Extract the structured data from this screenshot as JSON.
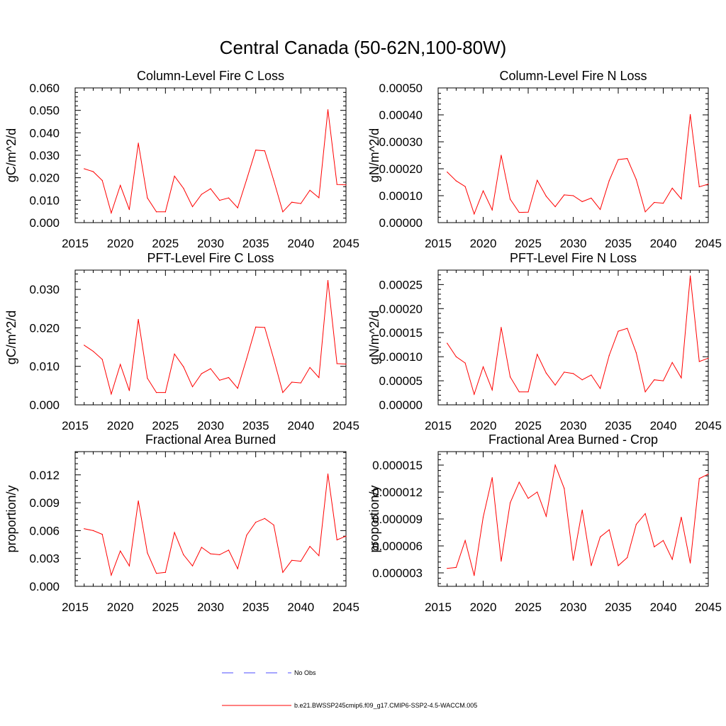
{
  "title": "Central Canada (50-62N,100-80W)",
  "colors": {
    "series": "#ff0000",
    "obs": "#4d4dff",
    "axis": "#000000"
  },
  "legend": [
    {
      "label": "No Obs",
      "style": "dashed",
      "color": "#4d4dff"
    },
    {
      "label": "b.e21.BWSSP245cmip6.f09_g17.CMIP6-SSP2-4.5-WACCM.005",
      "style": "solid",
      "color": "#ff0000"
    }
  ],
  "chart_data": [
    {
      "type": "line",
      "title": "Column-Level Fire C Loss",
      "xlabel": "",
      "ylabel": "gC/m^2/d",
      "xlim": [
        2015,
        2045
      ],
      "ylim": [
        0,
        0.06
      ],
      "xticks": [
        2015,
        2020,
        2025,
        2030,
        2035,
        2040,
        2045
      ],
      "xtick_labels": [
        "2015",
        "2020",
        "2025",
        "2030",
        "2035",
        "2040",
        "2045"
      ],
      "yticks": [
        0,
        0.01,
        0.02,
        0.03,
        0.04,
        0.05,
        0.06
      ],
      "ytick_labels": [
        "0.000",
        "0.010",
        "0.020",
        "0.030",
        "0.040",
        "0.050",
        "0.060"
      ],
      "x": [
        2016,
        2017,
        2018,
        2019,
        2020,
        2021,
        2022,
        2023,
        2024,
        2025,
        2026,
        2027,
        2028,
        2029,
        2030,
        2031,
        2032,
        2033,
        2034,
        2035,
        2036,
        2037,
        2038,
        2039,
        2040,
        2041,
        2042,
        2043,
        2044,
        2045
      ],
      "series": [
        {
          "name": "b.e21.BWSSP245cmip6.f09_g17.CMIP6-SSP2-4.5-WACCM.005",
          "values": [
            0.024,
            0.0227,
            0.0188,
            0.0043,
            0.0166,
            0.0058,
            0.0354,
            0.011,
            0.0048,
            0.0048,
            0.0207,
            0.0153,
            0.0071,
            0.0126,
            0.0151,
            0.0099,
            0.011,
            0.0066,
            0.0192,
            0.0323,
            0.032,
            0.0188,
            0.0048,
            0.0091,
            0.0085,
            0.0144,
            0.0111,
            0.0503,
            0.017,
            0.0168
          ]
        }
      ]
    },
    {
      "type": "line",
      "title": "Column-Level Fire N Loss",
      "xlabel": "",
      "ylabel": "gN/m^2/d",
      "xlim": [
        2015,
        2045
      ],
      "ylim": [
        0,
        0.0005
      ],
      "xticks": [
        2015,
        2020,
        2025,
        2030,
        2035,
        2040,
        2045
      ],
      "xtick_labels": [
        "2015",
        "2020",
        "2025",
        "2030",
        "2035",
        "2040",
        "2045"
      ],
      "yticks": [
        0,
        0.0001,
        0.0002,
        0.0003,
        0.0004,
        0.0005
      ],
      "ytick_labels": [
        "0.00000",
        "0.00010",
        "0.00020",
        "0.00030",
        "0.00040",
        "0.00050"
      ],
      "x": [
        2016,
        2017,
        2018,
        2019,
        2020,
        2021,
        2022,
        2023,
        2024,
        2025,
        2026,
        2027,
        2028,
        2029,
        2030,
        2031,
        2032,
        2033,
        2034,
        2035,
        2036,
        2037,
        2038,
        2039,
        2040,
        2041,
        2042,
        2043,
        2044,
        2045
      ],
      "series": [
        {
          "name": "b.e21.BWSSP245cmip6.f09_g17.CMIP6-SSP2-4.5-WACCM.005",
          "values": [
            0.000188,
            0.000155,
            0.000134,
            3.2e-05,
            0.000118,
            4.7e-05,
            0.00025,
            8.7e-05,
            3.8e-05,
            3.9e-05,
            0.000157,
            9.8e-05,
            5.9e-05,
            0.000103,
            0.0001,
            7.8e-05,
            9.1e-05,
            4.9e-05,
            0.000156,
            0.000234,
            0.000238,
            0.00016,
            4e-05,
            7.5e-05,
            7.2e-05,
            0.000128,
            8.8e-05,
            0.000401,
            0.000133,
            0.000143
          ]
        }
      ]
    },
    {
      "type": "line",
      "title": "PFT-Level Fire C Loss",
      "xlabel": "",
      "ylabel": "gC/m^2/d",
      "xlim": [
        2015,
        2045
      ],
      "ylim": [
        0,
        0.035
      ],
      "xticks": [
        2015,
        2020,
        2025,
        2030,
        2035,
        2040,
        2045
      ],
      "xtick_labels": [
        "2015",
        "2020",
        "2025",
        "2030",
        "2035",
        "2040",
        "2045"
      ],
      "yticks": [
        0,
        0.01,
        0.02,
        0.03
      ],
      "ytick_labels": [
        "0.000",
        "0.010",
        "0.020",
        "0.030"
      ],
      "x": [
        2016,
        2017,
        2018,
        2019,
        2020,
        2021,
        2022,
        2023,
        2024,
        2025,
        2026,
        2027,
        2028,
        2029,
        2030,
        2031,
        2032,
        2033,
        2034,
        2035,
        2036,
        2037,
        2038,
        2039,
        2040,
        2041,
        2042,
        2043,
        2044,
        2045
      ],
      "series": [
        {
          "name": "b.e21.BWSSP245cmip6.f09_g17.CMIP6-SSP2-4.5-WACCM.005",
          "values": [
            0.0155,
            0.0139,
            0.0118,
            0.0028,
            0.0105,
            0.0037,
            0.0222,
            0.0069,
            0.0032,
            0.0032,
            0.0132,
            0.0099,
            0.0047,
            0.0081,
            0.0094,
            0.0064,
            0.0071,
            0.0043,
            0.012,
            0.0202,
            0.0201,
            0.0119,
            0.0032,
            0.0059,
            0.0057,
            0.0097,
            0.0071,
            0.0323,
            0.0107,
            0.0106
          ]
        }
      ]
    },
    {
      "type": "line",
      "title": "PFT-Level Fire N Loss",
      "xlabel": "",
      "ylabel": "gN/m^2/d",
      "xlim": [
        2015,
        2045
      ],
      "ylim": [
        0,
        0.00028
      ],
      "xticks": [
        2015,
        2020,
        2025,
        2030,
        2035,
        2040,
        2045
      ],
      "xtick_labels": [
        "2015",
        "2020",
        "2025",
        "2030",
        "2035",
        "2040",
        "2045"
      ],
      "yticks": [
        0,
        5e-05,
        0.0001,
        0.00015,
        0.0002,
        0.00025
      ],
      "ytick_labels": [
        "0.00000",
        "0.00005",
        "0.00010",
        "0.00015",
        "0.00020",
        "0.00025"
      ],
      "x": [
        2016,
        2017,
        2018,
        2019,
        2020,
        2021,
        2022,
        2023,
        2024,
        2025,
        2026,
        2027,
        2028,
        2029,
        2030,
        2031,
        2032,
        2033,
        2034,
        2035,
        2036,
        2037,
        2038,
        2039,
        2040,
        2041,
        2042,
        2043,
        2044,
        2045
      ],
      "series": [
        {
          "name": "b.e21.BWSSP245cmip6.f09_g17.CMIP6-SSP2-4.5-WACCM.005",
          "values": [
            0.000128,
            0.0001,
            8.7e-05,
            2.2e-05,
            7.9e-05,
            3.1e-05,
            0.000161,
            5.8e-05,
            2.7e-05,
            2.7e-05,
            0.000105,
            6.6e-05,
            4.1e-05,
            6.8e-05,
            6.5e-05,
            5.2e-05,
            6.2e-05,
            3.4e-05,
            0.000103,
            0.000153,
            0.000159,
            0.000108,
            2.7e-05,
            5.2e-05,
            5e-05,
            8.8e-05,
            5.6e-05,
            0.000268,
            9e-05,
            9.7e-05
          ]
        }
      ]
    },
    {
      "type": "line",
      "title": "Fractional Area Burned",
      "xlabel": "",
      "ylabel": "proportion/y",
      "xlim": [
        2015,
        2045
      ],
      "ylim": [
        0,
        0.0145
      ],
      "xticks": [
        2015,
        2020,
        2025,
        2030,
        2035,
        2040,
        2045
      ],
      "xtick_labels": [
        "2015",
        "2020",
        "2025",
        "2030",
        "2035",
        "2040",
        "2045"
      ],
      "yticks": [
        0,
        0.003,
        0.006,
        0.009,
        0.012
      ],
      "ytick_labels": [
        "0.000",
        "0.003",
        "0.006",
        "0.009",
        "0.012"
      ],
      "x": [
        2016,
        2017,
        2018,
        2019,
        2020,
        2021,
        2022,
        2023,
        2024,
        2025,
        2026,
        2027,
        2028,
        2029,
        2030,
        2031,
        2032,
        2033,
        2034,
        2035,
        2036,
        2037,
        2038,
        2039,
        2040,
        2041,
        2042,
        2043,
        2044,
        2045
      ],
      "series": [
        {
          "name": "b.e21.BWSSP245cmip6.f09_g17.CMIP6-SSP2-4.5-WACCM.005",
          "values": [
            0.0062,
            0.006,
            0.0056,
            0.0012,
            0.0038,
            0.0022,
            0.0092,
            0.0036,
            0.0014,
            0.0015,
            0.0058,
            0.0034,
            0.0022,
            0.0042,
            0.0035,
            0.0034,
            0.0039,
            0.0019,
            0.0055,
            0.0069,
            0.0073,
            0.0066,
            0.0015,
            0.0028,
            0.0027,
            0.0043,
            0.0033,
            0.0121,
            0.005,
            0.0054
          ]
        }
      ]
    },
    {
      "type": "line",
      "title": "Fractional Area Burned - Crop",
      "xlabel": "",
      "ylabel": "proportion/y",
      "xlim": [
        2015,
        2045
      ],
      "ylim": [
        1.5e-06,
        1.65e-05
      ],
      "xticks": [
        2015,
        2020,
        2025,
        2030,
        2035,
        2040,
        2045
      ],
      "xtick_labels": [
        "2015",
        "2020",
        "2025",
        "2030",
        "2035",
        "2040",
        "2045"
      ],
      "yticks": [
        3e-06,
        6e-06,
        9e-06,
        1.2e-05,
        1.5e-05
      ],
      "ytick_labels": [
        "0.000003",
        "0.000006",
        "0.000009",
        "0.000012",
        "0.000015"
      ],
      "x": [
        2016,
        2017,
        2018,
        2019,
        2020,
        2021,
        2022,
        2023,
        2024,
        2025,
        2026,
        2027,
        2028,
        2029,
        2030,
        2031,
        2032,
        2033,
        2034,
        2035,
        2036,
        2037,
        2038,
        2039,
        2040,
        2041,
        2042,
        2043,
        2044,
        2045
      ],
      "series": [
        {
          "name": "b.e21.BWSSP245cmip6.f09_g17.CMIP6-SSP2-4.5-WACCM.005",
          "values": [
            3.5e-06,
            3.6e-06,
            6.6e-06,
            2.7e-06,
            9.2e-06,
            1.36e-05,
            4.3e-06,
            1.08e-05,
            1.31e-05,
            1.13e-05,
            1.2e-05,
            9.3e-06,
            1.5e-05,
            1.24e-05,
            4.4e-06,
            1e-05,
            3.8e-06,
            7e-06,
            7.8e-06,
            3.8e-06,
            4.7e-06,
            8.4e-06,
            9.6e-06,
            5.9e-06,
            6.6e-06,
            4.5e-06,
            9.2e-06,
            4.1e-06,
            1.35e-05,
            1.4e-05
          ]
        }
      ]
    }
  ]
}
